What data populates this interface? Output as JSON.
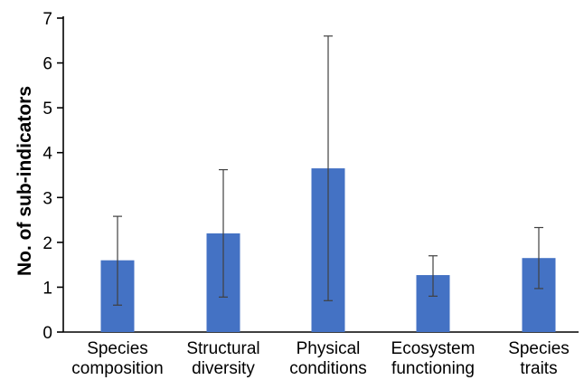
{
  "chart_data": {
    "type": "bar",
    "title": "",
    "xlabel": "",
    "ylabel": "No. of sub-indicators",
    "ylim": [
      0,
      7
    ],
    "yticks": [
      0,
      1,
      2,
      3,
      4,
      5,
      6,
      7
    ],
    "grid": false,
    "legend": "none",
    "bar_color": "#4472C4",
    "categories": [
      [
        "Species",
        "composition"
      ],
      [
        "Structural",
        "diversity"
      ],
      [
        "Physical",
        "conditions"
      ],
      [
        "Ecosystem",
        "functioning"
      ],
      [
        "Species",
        "traits"
      ]
    ],
    "values": [
      1.6,
      2.2,
      3.65,
      1.27,
      1.65
    ],
    "error_low": [
      0.6,
      0.78,
      0.7,
      0.8,
      0.97
    ],
    "error_high": [
      2.58,
      3.62,
      6.6,
      1.7,
      2.33
    ]
  }
}
